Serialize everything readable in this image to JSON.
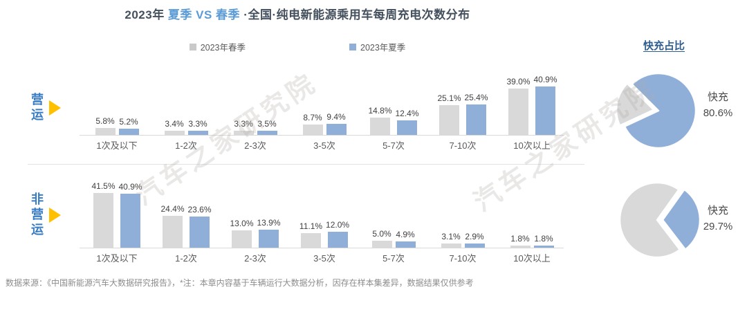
{
  "title": {
    "prefix": "2023年 ",
    "highlight": "夏季 VS 春季 ",
    "suffix": "·全国·纯电新能源乘用车每周充电次数分布"
  },
  "legend": [
    {
      "label": "2023年春季",
      "color": "#c9c9c9"
    },
    {
      "label": "2023年夏季",
      "color": "#8fafd9"
    }
  ],
  "watermark": {
    "text": "汽车之家研究院"
  },
  "right_panel": {
    "title": "快充占比"
  },
  "footer": {
    "text": "数据来源：《中国新能源汽车大数据研究报告》，*注：本章内容基于车辆运行大数据分析，因存在样本集差异，数据结果仅供参考"
  },
  "colors": {
    "spring_bar": "#d9d9d9",
    "summer_bar": "#8fafd9",
    "pie_fast": "#8fafd9",
    "pie_rest": "#d9d9d9",
    "accent_blue": "#5b9bd5",
    "row_label_blue": "#3a7cc4",
    "triangle_yellow": "#ffc000"
  },
  "chart_data": [
    {
      "type": "bar",
      "group": "营运",
      "title": "2023年 夏季 VS 春季 ·全国·纯电新能源乘用车每周充电次数分布（营运）",
      "categories": [
        "1次及以下",
        "1-2次",
        "2-3次",
        "3-5次",
        "5-7次",
        "7-10次",
        "10次以上"
      ],
      "series": [
        {
          "name": "2023年春季",
          "values": [
            5.8,
            3.4,
            3.3,
            8.7,
            14.8,
            25.1,
            39.0
          ]
        },
        {
          "name": "2023年夏季",
          "values": [
            5.2,
            3.3,
            3.5,
            9.4,
            12.4,
            25.4,
            40.9
          ]
        }
      ],
      "unit": "%",
      "ylim": [
        0,
        45
      ],
      "grid": false,
      "legend_position": "top"
    },
    {
      "type": "bar",
      "group": "非营运",
      "title": "2023年 夏季 VS 春季 ·全国·纯电新能源乘用车每周充电次数分布（非营运）",
      "categories": [
        "1次及以下",
        "1-2次",
        "2-3次",
        "3-5次",
        "5-7次",
        "7-10次",
        "10次以上"
      ],
      "series": [
        {
          "name": "2023年春季",
          "values": [
            41.5,
            24.4,
            13.0,
            11.1,
            5.0,
            3.1,
            1.8
          ]
        },
        {
          "name": "2023年夏季",
          "values": [
            40.9,
            23.6,
            13.9,
            12.0,
            4.9,
            2.9,
            1.8
          ]
        }
      ],
      "unit": "%",
      "ylim": [
        0,
        45
      ],
      "grid": false,
      "legend_position": "top"
    },
    {
      "type": "pie",
      "group": "营运",
      "title": "快充占比（营运）",
      "slices": [
        {
          "name": "快充",
          "pct": 80.6
        },
        {
          "name": "remainder",
          "pct": 19.4
        }
      ],
      "label_line1": "快充",
      "label_line2": "80.6%"
    },
    {
      "type": "pie",
      "group": "非营运",
      "title": "快充占比（非营运）",
      "slices": [
        {
          "name": "快充",
          "pct": 29.7
        },
        {
          "name": "remainder",
          "pct": 70.3
        }
      ],
      "label_line1": "快充",
      "label_line2": "29.7%"
    }
  ]
}
